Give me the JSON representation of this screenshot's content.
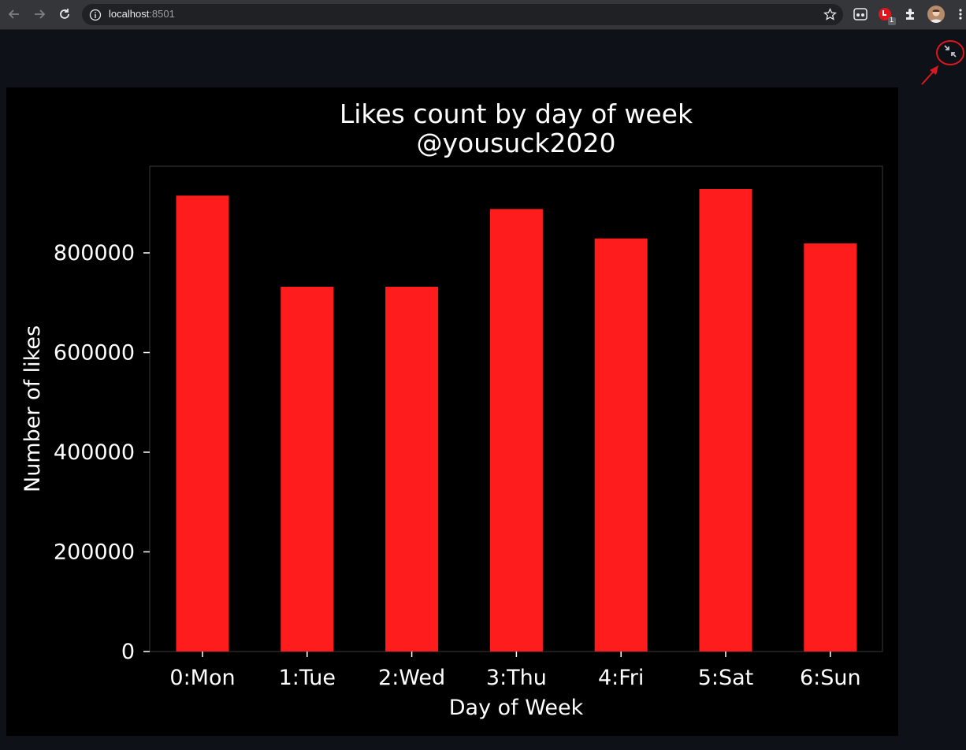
{
  "browser": {
    "url_host": "localhost",
    "url_port": ":8501",
    "extension_badge": "1",
    "icons": [
      "back-arrow-icon",
      "forward-arrow-icon",
      "reload-icon",
      "info-icon",
      "star-icon",
      "extension-icon",
      "notification-extension-icon",
      "puzzle-icon",
      "profile-avatar",
      "menu-dots-icon"
    ]
  },
  "app": {
    "fullscreen_icon": "exit-fullscreen-icon",
    "annotation_color": "#e0161e"
  },
  "chart_data": {
    "type": "bar",
    "title": "Likes count by day of week",
    "subtitle": "@yousuck2020",
    "xlabel": "Day of Week",
    "ylabel": "Number of likes",
    "categories": [
      "0:Mon",
      "1:Tue",
      "2:Wed",
      "3:Thu",
      "4:Fri",
      "5:Sat",
      "6:Sun"
    ],
    "values": [
      915000,
      732000,
      732000,
      888000,
      829000,
      928000,
      819000
    ],
    "yticks": [
      0,
      200000,
      400000,
      600000,
      800000
    ],
    "ytick_labels": [
      "0",
      "200000",
      "400000",
      "600000",
      "800000"
    ],
    "ylim": [
      0,
      975000
    ],
    "bar_color": "#ff1c1c",
    "background": "#000000",
    "grid": false,
    "legend": "none"
  }
}
